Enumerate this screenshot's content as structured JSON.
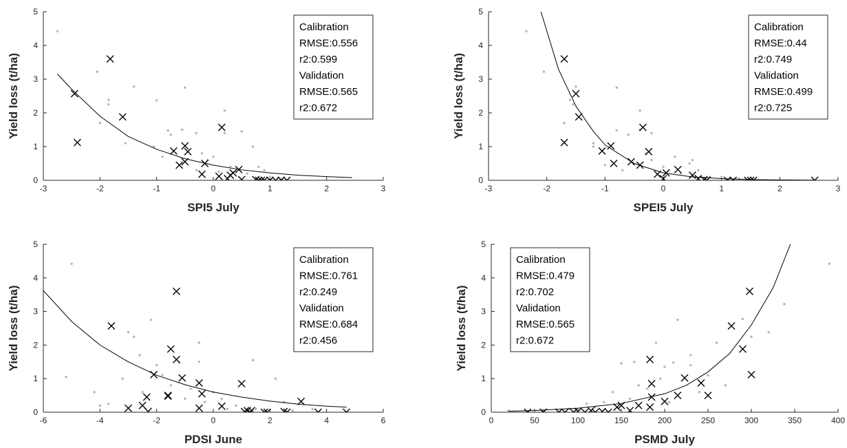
{
  "chart_data": [
    {
      "type": "scatter",
      "xlabel": "SPI5 July",
      "ylabel": "Yield loss (t/ha)",
      "xlim": [
        -3,
        3
      ],
      "ylim": [
        0,
        5
      ],
      "xticks": [
        -3,
        -2,
        -1,
        0,
        1,
        2,
        3
      ],
      "yticks": [
        0,
        1,
        2,
        3,
        4,
        5
      ],
      "annotation": [
        "Calibration",
        "RMSE:0.556",
        "r2:0.599",
        "Validation",
        "RMSE:0.565",
        "r2:0.672"
      ],
      "annotation_loc": "upper right",
      "series": [
        {
          "style": "dot",
          "color": "#b4b4b4",
          "x": [
            -2.75,
            -2.05,
            -1.85,
            -1.85,
            -1.4,
            -2,
            -1.55,
            -1.05,
            -1,
            -0.8,
            -0.75,
            -0.5,
            -0.55,
            -0.3,
            -0.2,
            -0.1,
            0,
            0.2,
            0.2,
            0.5,
            0.7,
            0.8,
            0.6,
            0.3,
            -0.3,
            -0.9,
            1.0,
            1.2,
            0.9,
            0.1
          ],
          "values": [
            4.42,
            3.22,
            2.38,
            2.25,
            2.78,
            1.7,
            1.1,
            1.0,
            2.37,
            1.48,
            1.35,
            2.75,
            1.5,
            1.4,
            0.8,
            0.6,
            0.7,
            2.07,
            1.4,
            1.45,
            1.0,
            0.4,
            0.2,
            0.4,
            0.3,
            0.7,
            0.1,
            0.05,
            0.3,
            0.25
          ]
        },
        {
          "style": "cross",
          "color": "#000000",
          "x": [
            -2.45,
            -2.4,
            -1.82,
            -1.6,
            -0.7,
            -0.6,
            -0.5,
            -0.5,
            -0.45,
            -0.2,
            -0.15,
            0.15,
            0.1,
            0.25,
            0.3,
            0.35,
            0.45,
            0.5,
            0.75,
            0.8,
            0.85,
            0.9,
            1.0,
            1.1,
            1.2,
            1.3
          ],
          "values": [
            2.57,
            1.12,
            3.6,
            1.88,
            0.87,
            0.45,
            1.02,
            0.55,
            0.85,
            0.18,
            0.5,
            1.57,
            0.12,
            0.05,
            0.15,
            0.22,
            0.32,
            0.02,
            0.02,
            0,
            0,
            0,
            0,
            0,
            0,
            0
          ]
        },
        {
          "style": "line",
          "color": "#000000",
          "x": [
            -2.75,
            -2.5,
            -2,
            -1.5,
            -1,
            -0.5,
            0,
            0.5,
            1,
            1.5,
            2,
            2.45
          ],
          "values": [
            3.15,
            2.7,
            1.9,
            1.3,
            0.92,
            0.64,
            0.45,
            0.31,
            0.22,
            0.15,
            0.11,
            0.08
          ]
        }
      ]
    },
    {
      "type": "scatter",
      "xlabel": "SPEI5 July",
      "ylabel": "Yield loss (t/ha)",
      "xlim": [
        -3,
        3
      ],
      "ylim": [
        0,
        5
      ],
      "xticks": [
        -3,
        -2,
        -1,
        0,
        1,
        2,
        3
      ],
      "yticks": [
        0,
        1,
        2,
        3,
        4,
        5
      ],
      "annotation": [
        "Calibration",
        "RMSE:0.44",
        "r2:0.749",
        "Validation",
        "RMSE:0.499",
        "r2:0.725"
      ],
      "annotation_loc": "upper right",
      "series": [
        {
          "style": "dot",
          "color": "#b4b4b4",
          "x": [
            -2.35,
            -2.05,
            -1.6,
            -1.55,
            -1.5,
            -1.7,
            -1.2,
            -1.2,
            -0.8,
            -0.8,
            -0.6,
            -0.4,
            -0.4,
            -0.3,
            -0.2,
            0,
            0.2,
            0.5,
            0.6,
            0.3,
            -0.7,
            1.0,
            1.3,
            0.8,
            -1.0,
            -0.2,
            0.45
          ],
          "values": [
            4.42,
            3.22,
            2.38,
            2.25,
            2.78,
            1.7,
            1.1,
            1.0,
            2.75,
            1.48,
            1.35,
            1.5,
            2.07,
            0.8,
            0.6,
            0.4,
            0.7,
            0.6,
            0.3,
            0.2,
            0.3,
            0.1,
            0.05,
            0.1,
            0.45,
            1.4,
            0.5
          ]
        },
        {
          "style": "cross",
          "color": "#000000",
          "x": [
            -1.7,
            -1.7,
            -1.5,
            -1.45,
            -1.05,
            -0.9,
            -0.85,
            -0.55,
            -0.4,
            -0.35,
            -0.25,
            -0.1,
            0,
            0.05,
            0.25,
            0.5,
            0.6,
            0.7,
            0.75,
            1.1,
            1.2,
            1.45,
            1.5,
            1.55,
            2.6
          ],
          "values": [
            3.6,
            1.12,
            2.57,
            1.88,
            0.87,
            1.02,
            0.5,
            0.55,
            0.45,
            1.57,
            0.85,
            0.18,
            0.05,
            0.22,
            0.32,
            0.15,
            0.05,
            0.02,
            0,
            0,
            0,
            0,
            0,
            0,
            0
          ]
        },
        {
          "style": "line",
          "color": "#000000",
          "x": [
            -2.1,
            -1.8,
            -1.5,
            -1.2,
            -1,
            -0.5,
            0,
            0.5,
            1,
            1.5,
            2,
            2.6
          ],
          "values": [
            5,
            3.3,
            2.2,
            1.45,
            1.05,
            0.5,
            0.22,
            0.1,
            0.05,
            0.02,
            0.01,
            0.005
          ]
        }
      ]
    },
    {
      "type": "scatter",
      "xlabel": "PDSI June",
      "ylabel": "Yield loss (t/ha)",
      "xlim": [
        -6,
        6
      ],
      "ylim": [
        0,
        5
      ],
      "xticks": [
        -6,
        -4,
        -2,
        0,
        2,
        4,
        6
      ],
      "yticks": [
        0,
        1,
        2,
        3,
        4,
        5
      ],
      "annotation": [
        "Calibration",
        "RMSE:0.761",
        "r2:0.249",
        "Validation",
        "RMSE:0.684",
        "r2:0.456"
      ],
      "annotation_loc": "upper right",
      "series": [
        {
          "style": "dot",
          "color": "#b4b4b4",
          "x": [
            -5,
            -5.2,
            -4,
            -3.7,
            -3,
            -2.8,
            -2.6,
            -2.2,
            -2,
            -1.8,
            -1.5,
            -1.2,
            -0.8,
            -0.5,
            -0.5,
            -0.3,
            0,
            0.3,
            0.8,
            1.4,
            1.5,
            2.2,
            2.5,
            -3.2,
            -1,
            0.5,
            2.8,
            -2.5,
            -4.2,
            3.5
          ],
          "values": [
            4.42,
            1.05,
            0.2,
            0.25,
            2.38,
            2.25,
            1.7,
            2.75,
            1.4,
            1.1,
            0.8,
            1.48,
            0.7,
            2.07,
            1.5,
            0.3,
            0.6,
            0.4,
            0.2,
            1.55,
            0.1,
            1.0,
            0.3,
            1.0,
            0.4,
            0.1,
            0.05,
            0.6,
            0.6,
            0.1
          ]
        },
        {
          "style": "cross",
          "color": "#000000",
          "x": [
            -3.6,
            -3,
            -2.5,
            -2.35,
            -2.3,
            -2.1,
            -1.6,
            -1.6,
            -1.3,
            -1.5,
            -1.3,
            -1.1,
            -0.5,
            -0.4,
            -0.5,
            0.3,
            1.0,
            1.1,
            1.2,
            1.3,
            1.35,
            1.8,
            1.9,
            2.5,
            2.6,
            3.1,
            3.7,
            4.7
          ],
          "values": [
            2.57,
            0.12,
            0.2,
            0.45,
            0.02,
            1.12,
            0.5,
            0.48,
            3.6,
            1.88,
            1.57,
            1.02,
            0.87,
            0.55,
            0.12,
            0.18,
            0.85,
            0.02,
            0.05,
            0,
            0.05,
            0,
            0,
            0.02,
            0,
            0.32,
            0,
            0
          ]
        },
        {
          "style": "line",
          "color": "#000000",
          "x": [
            -6,
            -5,
            -4,
            -3,
            -2,
            -1,
            0,
            1,
            2,
            3,
            4,
            4.7
          ],
          "values": [
            3.62,
            2.7,
            2.0,
            1.5,
            1.1,
            0.82,
            0.6,
            0.45,
            0.33,
            0.24,
            0.18,
            0.15
          ]
        }
      ]
    },
    {
      "type": "scatter",
      "xlabel": "PSMD July",
      "ylabel": "Yield loss (t/ha)",
      "xlim": [
        0,
        400
      ],
      "ylim": [
        0,
        5
      ],
      "xticks": [
        0,
        50,
        100,
        150,
        200,
        250,
        300,
        350,
        400
      ],
      "yticks": [
        0,
        1,
        2,
        3,
        4,
        5
      ],
      "annotation": [
        "Calibration",
        "RMSE:0.479",
        "r2:0.702",
        "Validation",
        "RMSE:0.565",
        "r2:0.672"
      ],
      "annotation_loc": "upper left",
      "series": [
        {
          "style": "dot",
          "color": "#b4b4b4",
          "x": [
            390,
            338,
            320,
            300,
            290,
            260,
            230,
            250,
            215,
            210,
            200,
            195,
            165,
            170,
            150,
            140,
            130,
            110,
            90,
            160,
            180,
            240,
            270,
            230,
            100,
            60,
            20,
            190,
            120,
            205
          ],
          "values": [
            4.42,
            3.22,
            2.38,
            2.25,
            2.78,
            2.07,
            1.7,
            1.1,
            2.75,
            1.48,
            1.35,
            1.0,
            1.5,
            0.8,
            1.45,
            0.6,
            0.3,
            0.25,
            0.1,
            0.4,
            0.7,
            0.6,
            0.8,
            1.4,
            0.05,
            0.05,
            0.05,
            2.07,
            0.15,
            0.3
          ]
        },
        {
          "style": "cross",
          "color": "#000000",
          "x": [
            42,
            60,
            78,
            85,
            95,
            100,
            108,
            115,
            120,
            128,
            135,
            145,
            150,
            160,
            170,
            183,
            183,
            185,
            185,
            200,
            215,
            223,
            242,
            250,
            277,
            290,
            298,
            300
          ],
          "values": [
            0,
            0,
            0,
            0,
            0,
            0.02,
            0,
            0.05,
            0,
            0.02,
            0,
            0.15,
            0.2,
            0.05,
            0.2,
            0.15,
            1.57,
            0.85,
            0.45,
            0.32,
            0.5,
            1.02,
            0.87,
            0.5,
            2.57,
            1.88,
            3.6,
            1.12
          ]
        },
        {
          "style": "line",
          "color": "#000000",
          "x": [
            20,
            50,
            100,
            150,
            200,
            225,
            250,
            275,
            300,
            325,
            345
          ],
          "values": [
            0.03,
            0.05,
            0.12,
            0.26,
            0.55,
            0.8,
            1.2,
            1.75,
            2.6,
            3.7,
            5
          ]
        }
      ]
    }
  ]
}
